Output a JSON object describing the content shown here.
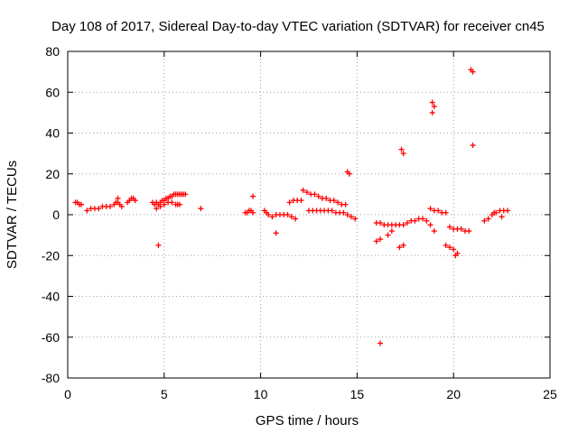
{
  "chart_data": {
    "type": "scatter",
    "title": "Day 108 of 2017, Sidereal Day-to-day VTEC variation (SDTVAR) for receiver cn45",
    "xlabel": "GPS time / hours",
    "ylabel": "SDTVAR / TECUs",
    "xlim": [
      0,
      25
    ],
    "ylim": [
      -80,
      80
    ],
    "xticks": [
      0,
      5,
      10,
      15,
      20,
      25
    ],
    "yticks": [
      -80,
      -60,
      -40,
      -20,
      0,
      20,
      40,
      60,
      80
    ],
    "xtick_labels": [
      "0",
      "5",
      "10",
      "15",
      "20",
      "25"
    ],
    "ytick_labels": [
      "-80",
      "-60",
      "-40",
      "-20",
      "0",
      "20",
      "40",
      "60",
      "80"
    ],
    "grid": true,
    "marker": "+",
    "color": "#ff0000",
    "series": [
      {
        "name": "SDTVAR",
        "x": [
          0.4,
          0.5,
          0.6,
          0.7,
          1.0,
          1.2,
          1.4,
          1.6,
          1.8,
          2.0,
          2.2,
          2.4,
          2.5,
          2.6,
          2.6,
          2.7,
          2.8,
          3.1,
          3.2,
          3.3,
          3.4,
          3.5,
          4.4,
          4.5,
          4.6,
          4.7,
          4.8,
          4.9,
          5.0,
          5.1,
          5.2,
          5.3,
          5.4,
          5.5,
          5.6,
          5.7,
          5.8,
          5.9,
          6.0,
          6.1,
          4.6,
          4.8,
          5.0,
          5.2,
          5.4,
          4.7,
          5.6,
          5.7,
          5.8,
          6.9,
          9.2,
          9.3,
          9.4,
          9.5,
          9.6,
          9.6,
          10.2,
          10.3,
          10.4,
          10.6,
          10.8,
          11.0,
          11.2,
          11.4,
          11.6,
          11.8,
          10.8,
          11.5,
          11.7,
          11.9,
          12.1,
          12.2,
          12.4,
          12.6,
          12.8,
          13.0,
          13.2,
          13.4,
          13.6,
          13.8,
          14.0,
          14.2,
          14.4,
          12.5,
          12.7,
          12.9,
          13.1,
          13.3,
          13.5,
          13.7,
          13.9,
          14.1,
          14.3,
          14.5,
          14.7,
          14.9,
          14.5,
          14.6,
          16.0,
          16.2,
          16.4,
          16.6,
          16.8,
          17.0,
          17.2,
          17.4,
          17.6,
          17.8,
          18.0,
          18.2,
          18.4,
          18.6,
          18.8,
          19.0,
          16.0,
          16.2,
          16.6,
          16.8,
          17.2,
          17.4,
          17.3,
          17.4,
          16.2,
          18.8,
          19.0,
          19.2,
          19.4,
          19.6,
          18.9,
          18.9,
          19.0,
          19.6,
          19.8,
          20.0,
          20.2,
          20.1,
          19.8,
          20.0,
          20.2,
          20.4,
          20.6,
          20.8,
          20.9,
          21.0,
          21.0,
          21.6,
          21.8,
          22.0,
          22.2,
          22.4,
          22.6,
          22.8,
          22.1,
          22.5
        ],
        "y": [
          6,
          6,
          5,
          5,
          2,
          3,
          3,
          3,
          4,
          4,
          4,
          5,
          6,
          8,
          6,
          5,
          4,
          6,
          7,
          8,
          8,
          7,
          6,
          5,
          6,
          5,
          6,
          7,
          7,
          8,
          8,
          9,
          9,
          10,
          10,
          10,
          10,
          10,
          10,
          10,
          3,
          4,
          5,
          6,
          6,
          -15,
          5,
          5,
          5,
          3,
          1,
          1,
          2,
          2,
          1,
          9,
          2,
          1,
          0,
          -1,
          0,
          0,
          0,
          0,
          -1,
          -2,
          -9,
          6,
          7,
          7,
          7,
          12,
          11,
          10,
          10,
          9,
          8,
          8,
          7,
          7,
          6,
          5,
          5,
          2,
          2,
          2,
          2,
          2,
          2,
          2,
          1,
          1,
          1,
          0,
          -1,
          -2,
          21,
          20,
          -4,
          -4,
          -5,
          -5,
          -5,
          -5,
          -5,
          -5,
          -4,
          -3,
          -3,
          -2,
          -2,
          -3,
          -5,
          -8,
          -13,
          -12,
          -10,
          -8,
          -16,
          -15,
          32,
          30,
          -63,
          3,
          2,
          2,
          1,
          1,
          55,
          50,
          53,
          -15,
          -16,
          -17,
          -19,
          -20,
          -6,
          -7,
          -7,
          -7,
          -8,
          -8,
          71,
          70,
          34,
          -3,
          -2,
          0,
          1,
          2,
          2,
          2,
          1,
          -1
        ]
      }
    ]
  }
}
